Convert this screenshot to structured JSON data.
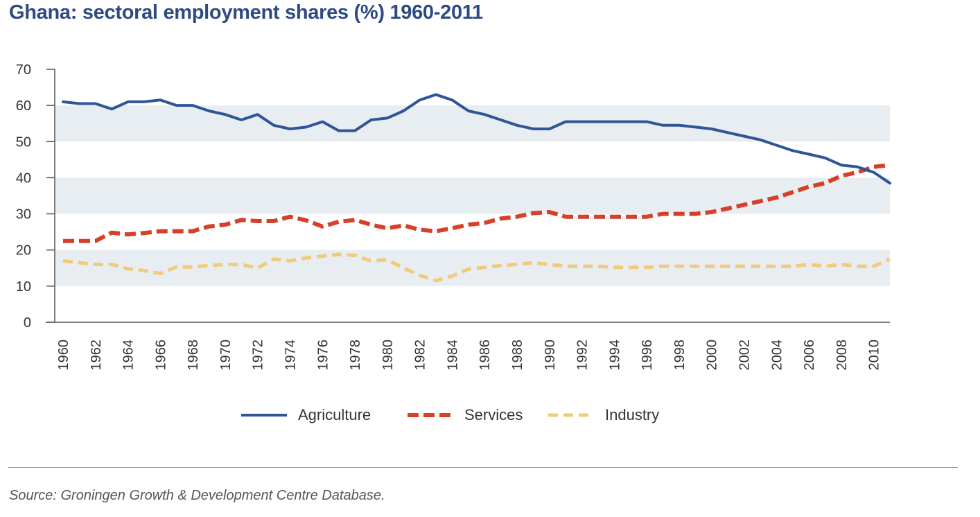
{
  "colors": {
    "title": "#2e4a82",
    "band": "#e8edf1",
    "axis": "#555555",
    "agriculture": "#2f5597",
    "services": "#d6402a",
    "industry": "#f0cb7a"
  },
  "chart_data": {
    "type": "line",
    "title": "Ghana: sectoral employment shares (%) 1960-2011",
    "xlabel": "",
    "ylabel": "",
    "ylim": [
      0,
      70
    ],
    "yticks": [
      "0",
      "10",
      "20",
      "30",
      "40",
      "50",
      "60",
      "70"
    ],
    "xticks": [
      "1960",
      "1962",
      "1964",
      "1966",
      "1968",
      "1970",
      "1972",
      "1974",
      "1976",
      "1978",
      "1980",
      "1982",
      "1984",
      "1986",
      "1988",
      "1990",
      "1992",
      "1994",
      "1996",
      "1998",
      "2000",
      "2002",
      "2004",
      "2006",
      "2008",
      "2010"
    ],
    "x": [
      1960,
      1961,
      1962,
      1963,
      1964,
      1965,
      1966,
      1967,
      1968,
      1969,
      1970,
      1971,
      1972,
      1973,
      1974,
      1975,
      1976,
      1977,
      1978,
      1979,
      1980,
      1981,
      1982,
      1983,
      1984,
      1985,
      1986,
      1987,
      1988,
      1989,
      1990,
      1991,
      1992,
      1993,
      1994,
      1995,
      1996,
      1997,
      1998,
      1999,
      2000,
      2001,
      2002,
      2003,
      2004,
      2005,
      2006,
      2007,
      2008,
      2009,
      2010,
      2011
    ],
    "grid": "alternating horizontal bands",
    "legend": "bottom-center",
    "series": [
      {
        "name": "Agriculture",
        "values": [
          61,
          60.5,
          60.5,
          59,
          61,
          61,
          61.5,
          60,
          60,
          58.5,
          57.5,
          56,
          57.5,
          54.5,
          53.5,
          54,
          55.5,
          53,
          53,
          56,
          56.5,
          58.5,
          61.5,
          63,
          61.5,
          58.5,
          57.5,
          56,
          54.5,
          53.5,
          53.5,
          55.5,
          55.5,
          55.5,
          55.5,
          55.5,
          55.5,
          54.5,
          54.5,
          54,
          53.5,
          52.5,
          51.5,
          50.5,
          49,
          47.5,
          46.5,
          45.5,
          43.5,
          43,
          41.5,
          38.5
        ]
      },
      {
        "name": "Services",
        "values": [
          22.5,
          22.5,
          22.5,
          24.8,
          24.3,
          24.7,
          25.2,
          25.2,
          25.2,
          26.5,
          27,
          28.3,
          28,
          28,
          29.2,
          28.2,
          26.5,
          27.8,
          28.3,
          27,
          26,
          26.8,
          25.6,
          25.2,
          26,
          27,
          27.5,
          28.7,
          29.2,
          30.2,
          30.5,
          29.2,
          29.2,
          29.2,
          29.2,
          29.2,
          29.2,
          30,
          30,
          30,
          30.5,
          31.5,
          32.5,
          33.5,
          34.5,
          36,
          37.5,
          38.5,
          40.5,
          41.5,
          43,
          43.5
        ]
      },
      {
        "name": "Industry",
        "values": [
          17,
          16.5,
          16,
          16,
          14.8,
          14.3,
          13.5,
          15.3,
          15.3,
          15.7,
          16,
          16,
          15,
          17.5,
          17,
          17.8,
          18.3,
          18.8,
          18.5,
          17,
          17.3,
          15,
          13,
          11.5,
          12.8,
          14.7,
          15.2,
          15.7,
          16,
          16.5,
          16,
          15.5,
          15.5,
          15.5,
          15.2,
          15.2,
          15.2,
          15.5,
          15.5,
          15.5,
          15.5,
          15.5,
          15.5,
          15.5,
          15.5,
          15.5,
          16,
          15.5,
          16,
          15.5,
          15.5,
          17.5
        ]
      }
    ],
    "source": "Source: Groningen Growth & Development Centre Database."
  }
}
